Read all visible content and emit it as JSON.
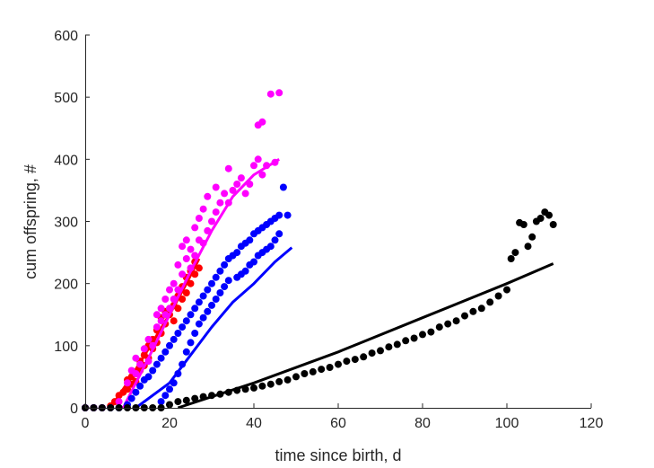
{
  "chart_data": {
    "type": "scatter",
    "xlabel": "time since birth, d",
    "ylabel": "cum offspring, #",
    "xlim": [
      0,
      120
    ],
    "ylim": [
      0,
      600
    ],
    "xticks": [
      0,
      20,
      40,
      60,
      80,
      100,
      120
    ],
    "yticks": [
      0,
      100,
      200,
      300,
      400,
      500,
      600
    ],
    "grid": false,
    "legend": false,
    "series": [
      {
        "color": "#ff0000",
        "points": [
          [
            0,
            0
          ],
          [
            2,
            0
          ],
          [
            4,
            0
          ],
          [
            6,
            3
          ],
          [
            7,
            10
          ],
          [
            8,
            20
          ],
          [
            9,
            25
          ],
          [
            10,
            30
          ],
          [
            10,
            45
          ],
          [
            11,
            38
          ],
          [
            11,
            50
          ],
          [
            12,
            42
          ],
          [
            12,
            55
          ],
          [
            13,
            60
          ],
          [
            13,
            75
          ],
          [
            14,
            68
          ],
          [
            14,
            85
          ],
          [
            15,
            80
          ],
          [
            15,
            100
          ],
          [
            16,
            95
          ],
          [
            16,
            110
          ],
          [
            17,
            105
          ],
          [
            17,
            125
          ],
          [
            18,
            120
          ],
          [
            18,
            145
          ],
          [
            19,
            135
          ],
          [
            19,
            155
          ],
          [
            20,
            150
          ],
          [
            21,
            140
          ],
          [
            21,
            165
          ],
          [
            22,
            160
          ],
          [
            22,
            180
          ],
          [
            23,
            175
          ],
          [
            23,
            195
          ],
          [
            24,
            185
          ],
          [
            24,
            210
          ],
          [
            25,
            200
          ],
          [
            25,
            220
          ],
          [
            26,
            215
          ],
          [
            26,
            235
          ],
          [
            27,
            225
          ]
        ],
        "line": [
          [
            6,
            0
          ],
          [
            10,
            40
          ],
          [
            15,
            95
          ],
          [
            20,
            150
          ],
          [
            24,
            200
          ],
          [
            27,
            240
          ]
        ]
      },
      {
        "color": "#ff00ff",
        "points": [
          [
            0,
            0
          ],
          [
            2,
            0
          ],
          [
            4,
            0
          ],
          [
            8,
            10
          ],
          [
            10,
            40
          ],
          [
            11,
            60
          ],
          [
            12,
            55
          ],
          [
            12,
            80
          ],
          [
            13,
            70
          ],
          [
            14,
            95
          ],
          [
            15,
            75
          ],
          [
            15,
            110
          ],
          [
            16,
            100
          ],
          [
            17,
            130
          ],
          [
            17,
            150
          ],
          [
            18,
            140
          ],
          [
            18,
            160
          ],
          [
            19,
            150
          ],
          [
            19,
            175
          ],
          [
            20,
            160
          ],
          [
            20,
            190
          ],
          [
            21,
            175
          ],
          [
            21,
            200
          ],
          [
            22,
            190
          ],
          [
            22,
            230
          ],
          [
            23,
            215
          ],
          [
            23,
            260
          ],
          [
            24,
            240
          ],
          [
            24,
            270
          ],
          [
            25,
            225
          ],
          [
            25,
            255
          ],
          [
            26,
            245
          ],
          [
            26,
            290
          ],
          [
            27,
            270
          ],
          [
            27,
            305
          ],
          [
            28,
            265
          ],
          [
            28,
            320
          ],
          [
            29,
            285
          ],
          [
            29,
            340
          ],
          [
            30,
            300
          ],
          [
            31,
            315
          ],
          [
            31,
            355
          ],
          [
            32,
            330
          ],
          [
            33,
            345
          ],
          [
            34,
            330
          ],
          [
            34,
            385
          ],
          [
            35,
            350
          ],
          [
            36,
            360
          ],
          [
            37,
            370
          ],
          [
            38,
            345
          ],
          [
            39,
            360
          ],
          [
            40,
            390
          ],
          [
            41,
            400
          ],
          [
            41,
            455
          ],
          [
            42,
            375
          ],
          [
            42,
            460
          ],
          [
            43,
            390
          ],
          [
            44,
            505
          ],
          [
            45,
            395
          ],
          [
            46,
            507
          ]
        ],
        "line": [
          [
            9,
            0
          ],
          [
            15,
            80
          ],
          [
            20,
            150
          ],
          [
            25,
            220
          ],
          [
            30,
            285
          ],
          [
            35,
            340
          ],
          [
            40,
            375
          ],
          [
            46,
            400
          ]
        ]
      },
      {
        "color": "#0000ff",
        "points": [
          [
            0,
            0
          ],
          [
            2,
            0
          ],
          [
            4,
            0
          ],
          [
            6,
            0
          ],
          [
            8,
            0
          ],
          [
            10,
            5
          ],
          [
            11,
            15
          ],
          [
            12,
            25
          ],
          [
            13,
            35
          ],
          [
            14,
            45
          ],
          [
            15,
            50
          ],
          [
            16,
            60
          ],
          [
            17,
            70
          ],
          [
            18,
            80
          ],
          [
            18,
            10
          ],
          [
            19,
            90
          ],
          [
            19,
            20
          ],
          [
            20,
            100
          ],
          [
            20,
            30
          ],
          [
            21,
            110
          ],
          [
            21,
            40
          ],
          [
            22,
            120
          ],
          [
            22,
            55
          ],
          [
            23,
            130
          ],
          [
            23,
            70
          ],
          [
            24,
            140
          ],
          [
            24,
            90
          ],
          [
            25,
            150
          ],
          [
            25,
            105
          ],
          [
            26,
            160
          ],
          [
            26,
            120
          ],
          [
            27,
            170
          ],
          [
            27,
            135
          ],
          [
            28,
            180
          ],
          [
            28,
            145
          ],
          [
            29,
            190
          ],
          [
            29,
            155
          ],
          [
            30,
            200
          ],
          [
            30,
            165
          ],
          [
            31,
            210
          ],
          [
            31,
            175
          ],
          [
            32,
            220
          ],
          [
            32,
            185
          ],
          [
            33,
            230
          ],
          [
            33,
            195
          ],
          [
            34,
            240
          ],
          [
            34,
            205
          ],
          [
            35,
            245
          ],
          [
            36,
            250
          ],
          [
            36,
            210
          ],
          [
            37,
            260
          ],
          [
            37,
            215
          ],
          [
            38,
            265
          ],
          [
            38,
            220
          ],
          [
            39,
            270
          ],
          [
            39,
            230
          ],
          [
            40,
            280
          ],
          [
            40,
            235
          ],
          [
            41,
            285
          ],
          [
            41,
            245
          ],
          [
            42,
            290
          ],
          [
            42,
            250
          ],
          [
            43,
            295
          ],
          [
            43,
            255
          ],
          [
            44,
            300
          ],
          [
            44,
            260
          ],
          [
            45,
            305
          ],
          [
            45,
            270
          ],
          [
            46,
            310
          ],
          [
            46,
            280
          ],
          [
            47,
            355
          ],
          [
            48,
            310
          ]
        ],
        "line": [
          [
            12,
            0
          ],
          [
            20,
            40
          ],
          [
            25,
            85
          ],
          [
            30,
            130
          ],
          [
            35,
            170
          ],
          [
            40,
            200
          ],
          [
            45,
            235
          ],
          [
            49,
            258
          ]
        ]
      },
      {
        "color": "#000000",
        "points": [
          [
            0,
            0
          ],
          [
            2,
            0
          ],
          [
            4,
            0
          ],
          [
            6,
            0
          ],
          [
            8,
            0
          ],
          [
            10,
            0
          ],
          [
            12,
            0
          ],
          [
            14,
            0
          ],
          [
            16,
            0
          ],
          [
            18,
            0
          ],
          [
            20,
            5
          ],
          [
            22,
            10
          ],
          [
            24,
            12
          ],
          [
            26,
            15
          ],
          [
            28,
            18
          ],
          [
            30,
            20
          ],
          [
            32,
            22
          ],
          [
            34,
            25
          ],
          [
            36,
            28
          ],
          [
            38,
            30
          ],
          [
            40,
            32
          ],
          [
            42,
            35
          ],
          [
            44,
            38
          ],
          [
            46,
            42
          ],
          [
            48,
            45
          ],
          [
            50,
            50
          ],
          [
            52,
            55
          ],
          [
            54,
            58
          ],
          [
            56,
            62
          ],
          [
            58,
            65
          ],
          [
            60,
            70
          ],
          [
            62,
            75
          ],
          [
            64,
            78
          ],
          [
            66,
            82
          ],
          [
            68,
            88
          ],
          [
            70,
            92
          ],
          [
            72,
            98
          ],
          [
            74,
            102
          ],
          [
            76,
            108
          ],
          [
            78,
            112
          ],
          [
            80,
            118
          ],
          [
            82,
            122
          ],
          [
            84,
            130
          ],
          [
            86,
            135
          ],
          [
            88,
            140
          ],
          [
            90,
            148
          ],
          [
            92,
            155
          ],
          [
            94,
            160
          ],
          [
            96,
            170
          ],
          [
            98,
            180
          ],
          [
            100,
            190
          ],
          [
            101,
            240
          ],
          [
            102,
            250
          ],
          [
            103,
            298
          ],
          [
            104,
            295
          ],
          [
            105,
            260
          ],
          [
            106,
            275
          ],
          [
            107,
            300
          ],
          [
            108,
            305
          ],
          [
            109,
            315
          ],
          [
            110,
            310
          ],
          [
            111,
            295
          ]
        ],
        "line": [
          [
            22,
            0
          ],
          [
            40,
            40
          ],
          [
            60,
            90
          ],
          [
            80,
            145
          ],
          [
            100,
            200
          ],
          [
            111,
            232
          ]
        ]
      }
    ]
  }
}
